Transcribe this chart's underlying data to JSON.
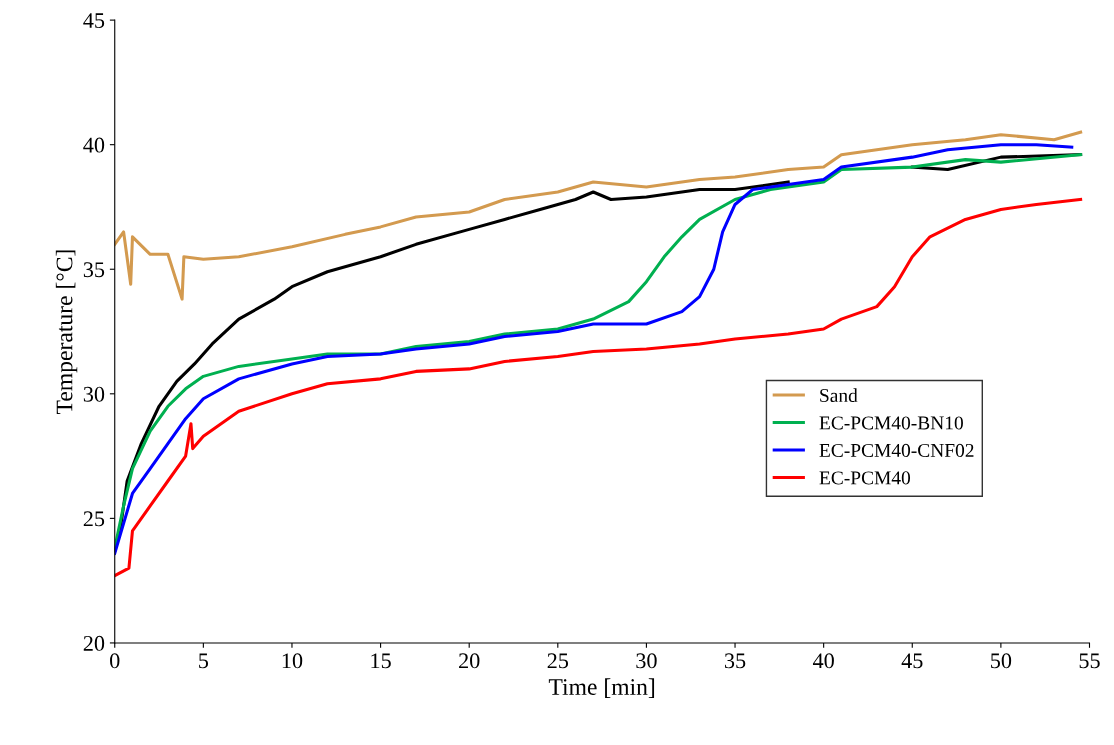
{
  "chart_data": {
    "type": "line",
    "xlabel": "Time [min]",
    "ylabel": "Temperature [°C]",
    "xlim": [
      0,
      55
    ],
    "xticks": [
      0,
      5,
      10,
      15,
      20,
      25,
      30,
      35,
      40,
      45,
      50,
      55
    ],
    "ylim": [
      20,
      45
    ],
    "yticks": [
      20,
      25,
      30,
      35,
      40,
      45
    ],
    "grid": false,
    "legend": "bottom right",
    "marker": "none",
    "line_style": "solid",
    "series": [
      {
        "name": "Sand",
        "color": "#d39a4f",
        "x": [
          0,
          0.5,
          0.9,
          1,
          2,
          3,
          3.8,
          3.9,
          5,
          7,
          10,
          13,
          15,
          17,
          20,
          22,
          25,
          27,
          30,
          33,
          35,
          38,
          40,
          41,
          45,
          48,
          50,
          53,
          54.5
        ],
        "values": [
          36,
          36.5,
          34.4,
          36.3,
          35.6,
          35.6,
          33.8,
          35.5,
          35.4,
          35.5,
          35.9,
          36.4,
          36.7,
          37.1,
          37.3,
          37.8,
          38.1,
          38.5,
          38.3,
          38.6,
          38.7,
          39.0,
          39.1,
          39.6,
          40.0,
          40.2,
          40.4,
          40.2,
          40.5
        ]
      },
      {
        "color": "#000000",
        "x": [
          0,
          0.3,
          0.7,
          1.5,
          2.5,
          3.5,
          4.5,
          5.5,
          7,
          9,
          10,
          12,
          15,
          17,
          20,
          22,
          24,
          26,
          27,
          28,
          30,
          33,
          35,
          38,
          40,
          41,
          45,
          47,
          50,
          54.5
        ],
        "values": [
          23.7,
          24.5,
          26.5,
          28,
          29.5,
          30.5,
          31.2,
          32,
          33,
          33.8,
          34.3,
          34.9,
          35.5,
          36,
          36.6,
          37,
          37.4,
          37.8,
          38.1,
          37.8,
          37.9,
          38.2,
          38.2,
          38.5,
          null,
          null,
          39.1,
          39.0,
          39.5,
          39.6
        ]
      },
      {
        "name": "EC-PCM40-BN10",
        "color": "#00b050",
        "x": [
          0,
          0.5,
          1,
          2,
          3,
          4,
          5,
          7,
          10,
          12,
          15,
          17,
          20,
          22,
          25,
          27,
          29,
          30,
          31,
          32,
          33,
          35,
          37,
          40,
          41,
          45,
          48,
          50,
          54.5
        ],
        "values": [
          23.8,
          25.5,
          27,
          28.5,
          29.5,
          30.2,
          30.7,
          31.1,
          31.4,
          31.6,
          31.6,
          31.9,
          32.1,
          32.4,
          32.6,
          33,
          33.7,
          34.5,
          35.5,
          36.3,
          37,
          37.8,
          38.2,
          38.5,
          39.0,
          39.1,
          39.4,
          39.3,
          39.6
        ]
      },
      {
        "name": "EC-PCM40-CNF02",
        "color": "#0000ff",
        "x": [
          0,
          0.5,
          1,
          2,
          3,
          4,
          5,
          7,
          10,
          12,
          15,
          17,
          20,
          22,
          25,
          27,
          30,
          32,
          33,
          33.8,
          34.3,
          35,
          36,
          38,
          40,
          41,
          45,
          47,
          50,
          52,
          54
        ],
        "values": [
          23.6,
          24.8,
          26,
          27,
          28,
          29,
          29.8,
          30.6,
          31.2,
          31.5,
          31.6,
          31.8,
          32,
          32.3,
          32.5,
          32.8,
          32.8,
          33.3,
          33.9,
          35,
          36.5,
          37.6,
          38.2,
          38.4,
          38.6,
          39.1,
          39.5,
          39.8,
          40.0,
          40.0,
          39.9
        ]
      },
      {
        "name": "EC-PCM40",
        "color": "#ff0000",
        "x": [
          0,
          0.8,
          1,
          2,
          3,
          4,
          4.3,
          4.4,
          5,
          7,
          10,
          12,
          15,
          17,
          20,
          22,
          25,
          27,
          30,
          33,
          35,
          38,
          40,
          41,
          43,
          44,
          45,
          46,
          48,
          50,
          52,
          54.5
        ],
        "values": [
          22.7,
          23.0,
          24.5,
          25.5,
          26.5,
          27.5,
          28.8,
          27.8,
          28.3,
          29.3,
          30,
          30.4,
          30.6,
          30.9,
          31.0,
          31.3,
          31.5,
          31.7,
          31.8,
          32.0,
          32.2,
          32.4,
          32.6,
          33.0,
          33.5,
          34.3,
          35.5,
          36.3,
          37.0,
          37.4,
          37.6,
          37.8
        ]
      }
    ]
  }
}
